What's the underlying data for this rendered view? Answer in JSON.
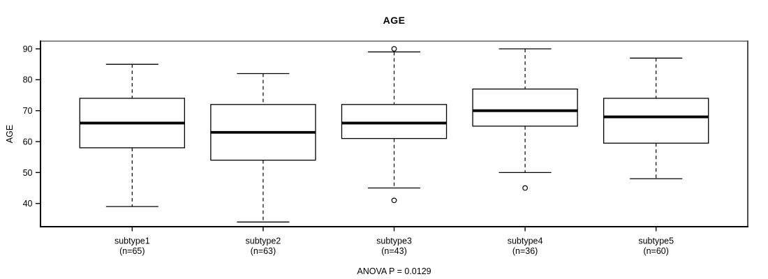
{
  "chart_data": {
    "type": "boxplot",
    "title": "AGE",
    "xlabel": "",
    "ylabel": "AGE",
    "footer_annotation": "ANOVA P = 0.0129",
    "ylim": [
      32.5,
      92.5
    ],
    "yticks": [
      40,
      50,
      60,
      70,
      80,
      90
    ],
    "grid": false,
    "legend": false,
    "orientation": "vertical",
    "categories": [
      "subtype1",
      "subtype2",
      "subtype3",
      "subtype4",
      "subtype5"
    ],
    "category_sublabels": [
      "(n=65)",
      "(n=63)",
      "(n=43)",
      "(n=36)",
      "(n=60)"
    ],
    "series": [
      {
        "name": "subtype1",
        "n": 65,
        "whisker_low": 39,
        "q1": 58,
        "median": 66,
        "q3": 74,
        "whisker_high": 85,
        "outliers": []
      },
      {
        "name": "subtype2",
        "n": 63,
        "whisker_low": 34,
        "q1": 54,
        "median": 63,
        "q3": 72,
        "whisker_high": 82,
        "outliers": []
      },
      {
        "name": "subtype3",
        "n": 43,
        "whisker_low": 45,
        "q1": 61,
        "median": 66,
        "q3": 72,
        "whisker_high": 89,
        "outliers": [
          90,
          41
        ]
      },
      {
        "name": "subtype4",
        "n": 36,
        "whisker_low": 50,
        "q1": 65,
        "median": 70,
        "q3": 77,
        "whisker_high": 90,
        "outliers": [
          45
        ]
      },
      {
        "name": "subtype5",
        "n": 60,
        "whisker_low": 48,
        "q1": 59.5,
        "median": 68,
        "q3": 74,
        "whisker_high": 87,
        "outliers": []
      }
    ],
    "colors": {
      "background": "#ffffff",
      "box_fill": "#ffffff",
      "stroke": "#000000",
      "border_top": "#8a8a8a",
      "border_right": "#4d4d4d",
      "border_bottom": "#000000",
      "border_left": "#000000"
    }
  }
}
